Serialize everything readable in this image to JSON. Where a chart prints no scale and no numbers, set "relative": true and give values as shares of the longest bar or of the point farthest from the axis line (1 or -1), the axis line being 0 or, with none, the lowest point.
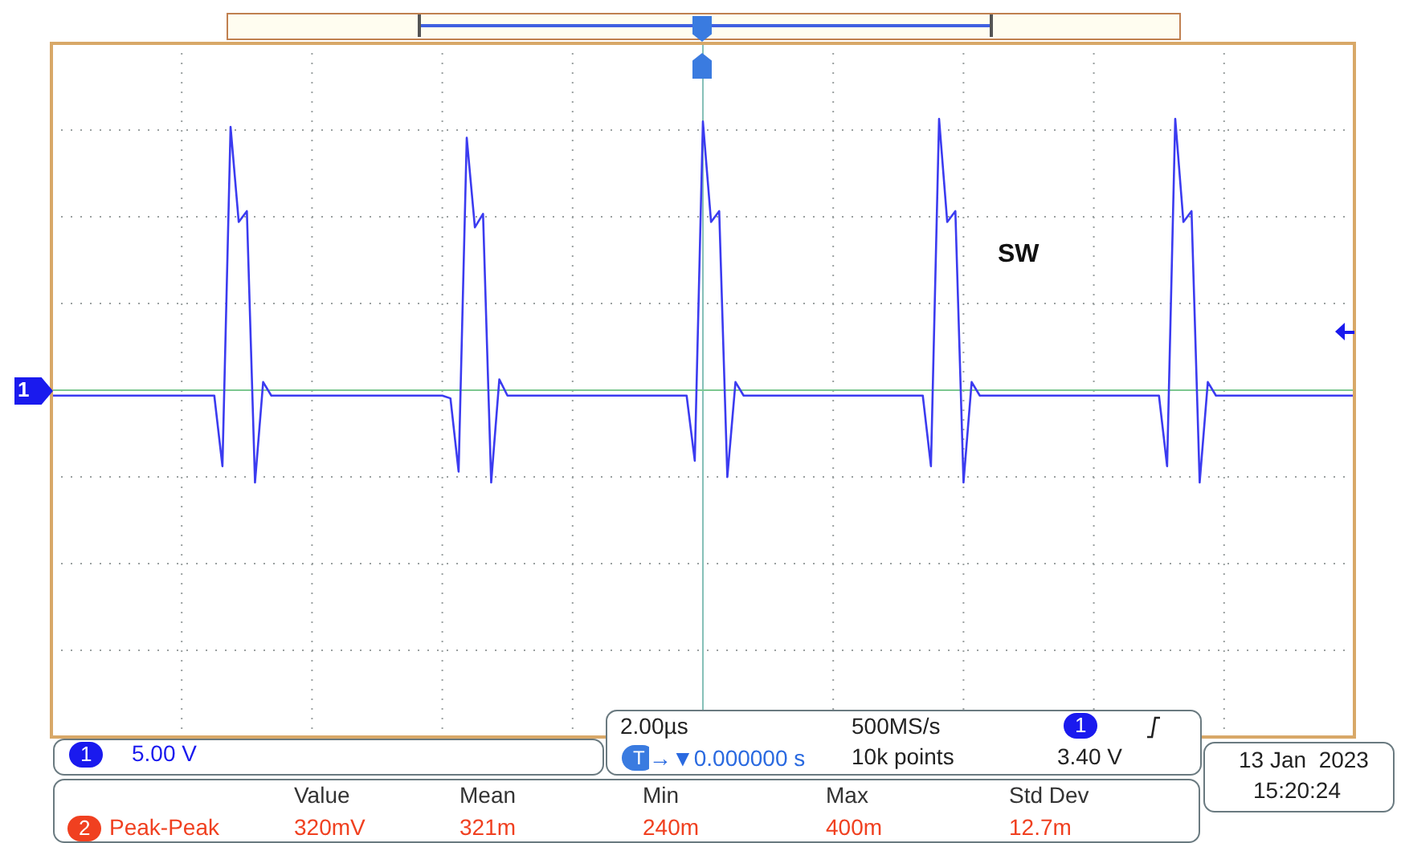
{
  "chart_data": {
    "type": "line",
    "relative": true,
    "grid": true,
    "categories": [
      null,
      null,
      null,
      null,
      null,
      null,
      null,
      null,
      null,
      null,
      null,
      null,
      null,
      null,
      null,
      null,
      null,
      null,
      null,
      null,
      null,
      null,
      null,
      null,
      null,
      null,
      null,
      null,
      null,
      null,
      null,
      null,
      null,
      null,
      null,
      null,
      null,
      null,
      null,
      null,
      null,
      null,
      null,
      null,
      null,
      null,
      null,
      null,
      null,
      null,
      null,
      null,
      null,
      null,
      null,
      null,
      null,
      null,
      null,
      null,
      null,
      null,
      null,
      null,
      null,
      null,
      null,
      null,
      null,
      null,
      null,
      null,
      null,
      null,
      null,
      null,
      null,
      null,
      null,
      null,
      null,
      null,
      null,
      null,
      null,
      null,
      null,
      null,
      null,
      null,
      null,
      null,
      null,
      null,
      null,
      null,
      null,
      null,
      null,
      null,
      null,
      null,
      null,
      null,
      null,
      null,
      null,
      null,
      null,
      null,
      null,
      null,
      null,
      null,
      null,
      null,
      null,
      null,
      null,
      null,
      null,
      null,
      null,
      null,
      null,
      null,
      null,
      null,
      null,
      null,
      null,
      null,
      null,
      null,
      null,
      null,
      null,
      null,
      null,
      null,
      null,
      null,
      null,
      null,
      null,
      null,
      null,
      null,
      null,
      null,
      null,
      null,
      null,
      null,
      null,
      null,
      null,
      null,
      null,
      null,
      null
    ],
    "series": [
      {
        "color": "#3b3bf0",
        "values": [
          -0.02,
          -0.02,
          -0.02,
          -0.02,
          -0.02,
          -0.02,
          -0.02,
          -0.02,
          -0.02,
          -0.02,
          -0.02,
          -0.02,
          -0.02,
          -0.02,
          -0.02,
          -0.02,
          -0.02,
          -0.02,
          -0.02,
          -0.02,
          -0.02,
          -0.28,
          0.97,
          0.62,
          0.66,
          -0.34,
          0.03,
          -0.02,
          -0.02,
          -0.02,
          -0.02,
          -0.02,
          -0.02,
          -0.02,
          -0.02,
          -0.02,
          -0.02,
          -0.02,
          -0.02,
          -0.02,
          -0.02,
          -0.02,
          -0.02,
          -0.02,
          -0.02,
          -0.02,
          -0.02,
          -0.02,
          -0.02,
          -0.03,
          -0.3,
          0.93,
          0.6,
          0.65,
          -0.34,
          0.04,
          -0.02,
          -0.02,
          -0.02,
          -0.02,
          -0.02,
          -0.02,
          -0.02,
          -0.02,
          -0.02,
          -0.02,
          -0.02,
          -0.02,
          -0.02,
          -0.02,
          -0.02,
          -0.02,
          -0.02,
          -0.02,
          -0.02,
          -0.02,
          -0.02,
          -0.02,
          -0.02,
          -0.26,
          0.99,
          0.62,
          0.66,
          -0.32,
          0.03,
          -0.02,
          -0.02,
          -0.02,
          -0.02,
          -0.02,
          -0.02,
          -0.02,
          -0.02,
          -0.02,
          -0.02,
          -0.02,
          -0.02,
          -0.02,
          -0.02,
          -0.02,
          -0.02,
          -0.02,
          -0.02,
          -0.02,
          -0.02,
          -0.02,
          -0.02,
          -0.02,
          -0.28,
          1,
          0.62,
          0.66,
          -0.34,
          0.03,
          -0.02,
          -0.02,
          -0.02,
          -0.02,
          -0.02,
          -0.02,
          -0.02,
          -0.02,
          -0.02,
          -0.02,
          -0.02,
          -0.02,
          -0.02,
          -0.02,
          -0.02,
          -0.02,
          -0.02,
          -0.02,
          -0.02,
          -0.02,
          -0.02,
          -0.02,
          -0.02,
          -0.28,
          1,
          0.62,
          0.66,
          -0.34,
          0.03,
          -0.02,
          -0.02,
          -0.02,
          -0.02,
          -0.02,
          -0.02,
          -0.02,
          -0.02,
          -0.02,
          -0.02,
          -0.02,
          -0.02,
          -0.02,
          -0.02,
          -0.02,
          -0.02,
          -0.02,
          -0.02
        ]
      }
    ],
    "ref_lines": [
      {
        "axis": "y",
        "value": 0,
        "color": "#7cc890"
      }
    ],
    "annotations": [
      "SW",
      "1",
      "1",
      "5.00 V",
      "2.00µs",
      "500MS/s",
      "1",
      "3.40 V",
      "T",
      "→▼0.000000 s",
      "10k points",
      "13 Jan  2023",
      "15:20:24",
      "2",
      "Peak-Peak",
      "Value",
      "Mean",
      "Min",
      "Max",
      "Std Dev",
      "320mV",
      "321m",
      "240m",
      "400m",
      "12.7m"
    ]
  }
}
